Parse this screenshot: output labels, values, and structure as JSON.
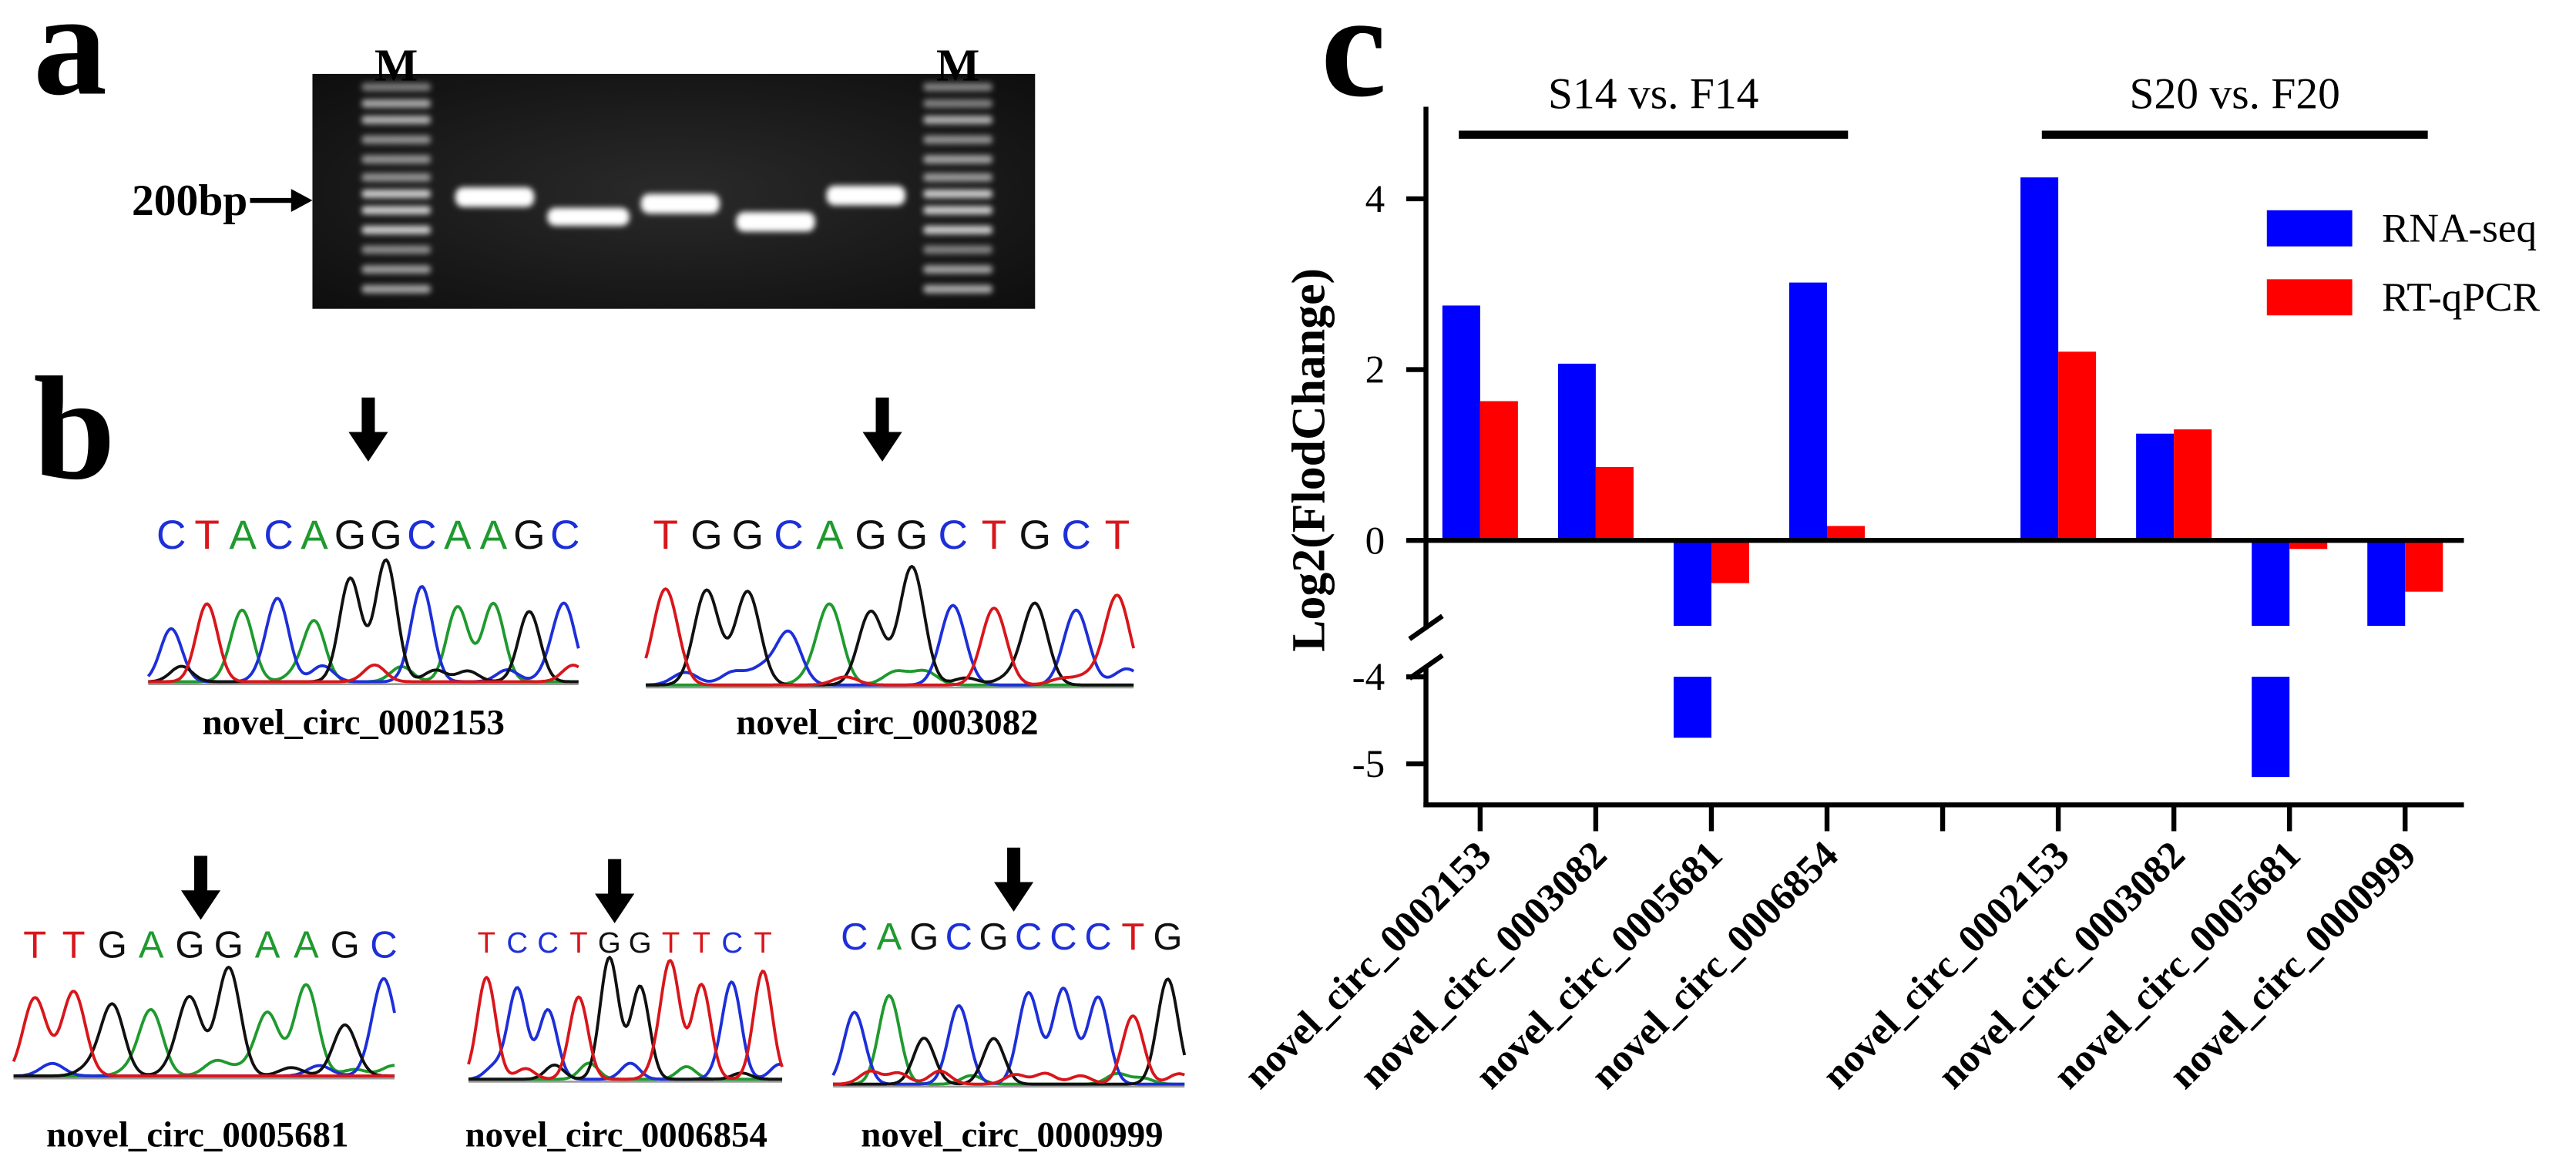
{
  "panel_a": {
    "label": "a",
    "marker_left": "M",
    "marker_right": "M",
    "size_marker": "200bp"
  },
  "panel_b": {
    "label": "b",
    "traces": [
      {
        "sequence": "CTACAGGCAAGC",
        "name": "novel_circ_0002153"
      },
      {
        "sequence": "TGGCAGGCTGCT",
        "name": "novel_circ_0003082"
      },
      {
        "sequence": "TTGAGGAAGC",
        "name": "novel_circ_0005681"
      },
      {
        "sequence": "TCCTGGTTCT",
        "name": "novel_circ_0006854"
      },
      {
        "sequence": "CAGCGCCCTG",
        "name": "novel_circ_0000999"
      }
    ]
  },
  "panel_c": {
    "label": "c"
  },
  "colors": {
    "A": "#1f9a2e",
    "C": "#1d2fd8",
    "G": "#111111",
    "T": "#d8161b",
    "rna_seq": "#0000ff",
    "rt_qpcr": "#ff0000"
  },
  "chart_data": {
    "type": "bar",
    "title": "",
    "xlabel": "",
    "ylabel": "Log2(FlodChange)",
    "yticks": [
      4,
      2,
      0,
      -4,
      -5
    ],
    "axis_break": [
      -1,
      -4
    ],
    "ylim": [
      -5.5,
      5
    ],
    "groups": [
      {
        "label": "S14 vs. F14",
        "count": 4
      },
      {
        "label": "S20 vs. F20",
        "count": 4
      }
    ],
    "categories": [
      "novel_circ_0002153",
      "novel_circ_0003082",
      "novel_circ_0005681",
      "novel_circ_0006854",
      "novel_circ_0002153",
      "novel_circ_0003082",
      "novel_circ_0005681",
      "novel_circ_0000999"
    ],
    "series": [
      {
        "name": "RNA-seq",
        "values": [
          2.75,
          2.07,
          -4.7,
          3.02,
          4.25,
          1.25,
          -5.15,
          -1.0
        ]
      },
      {
        "name": "RT-qPCR",
        "values": [
          1.63,
          0.86,
          -0.5,
          0.17,
          2.21,
          1.3,
          -0.1,
          -0.6
        ]
      }
    ],
    "legend": "top-right"
  }
}
